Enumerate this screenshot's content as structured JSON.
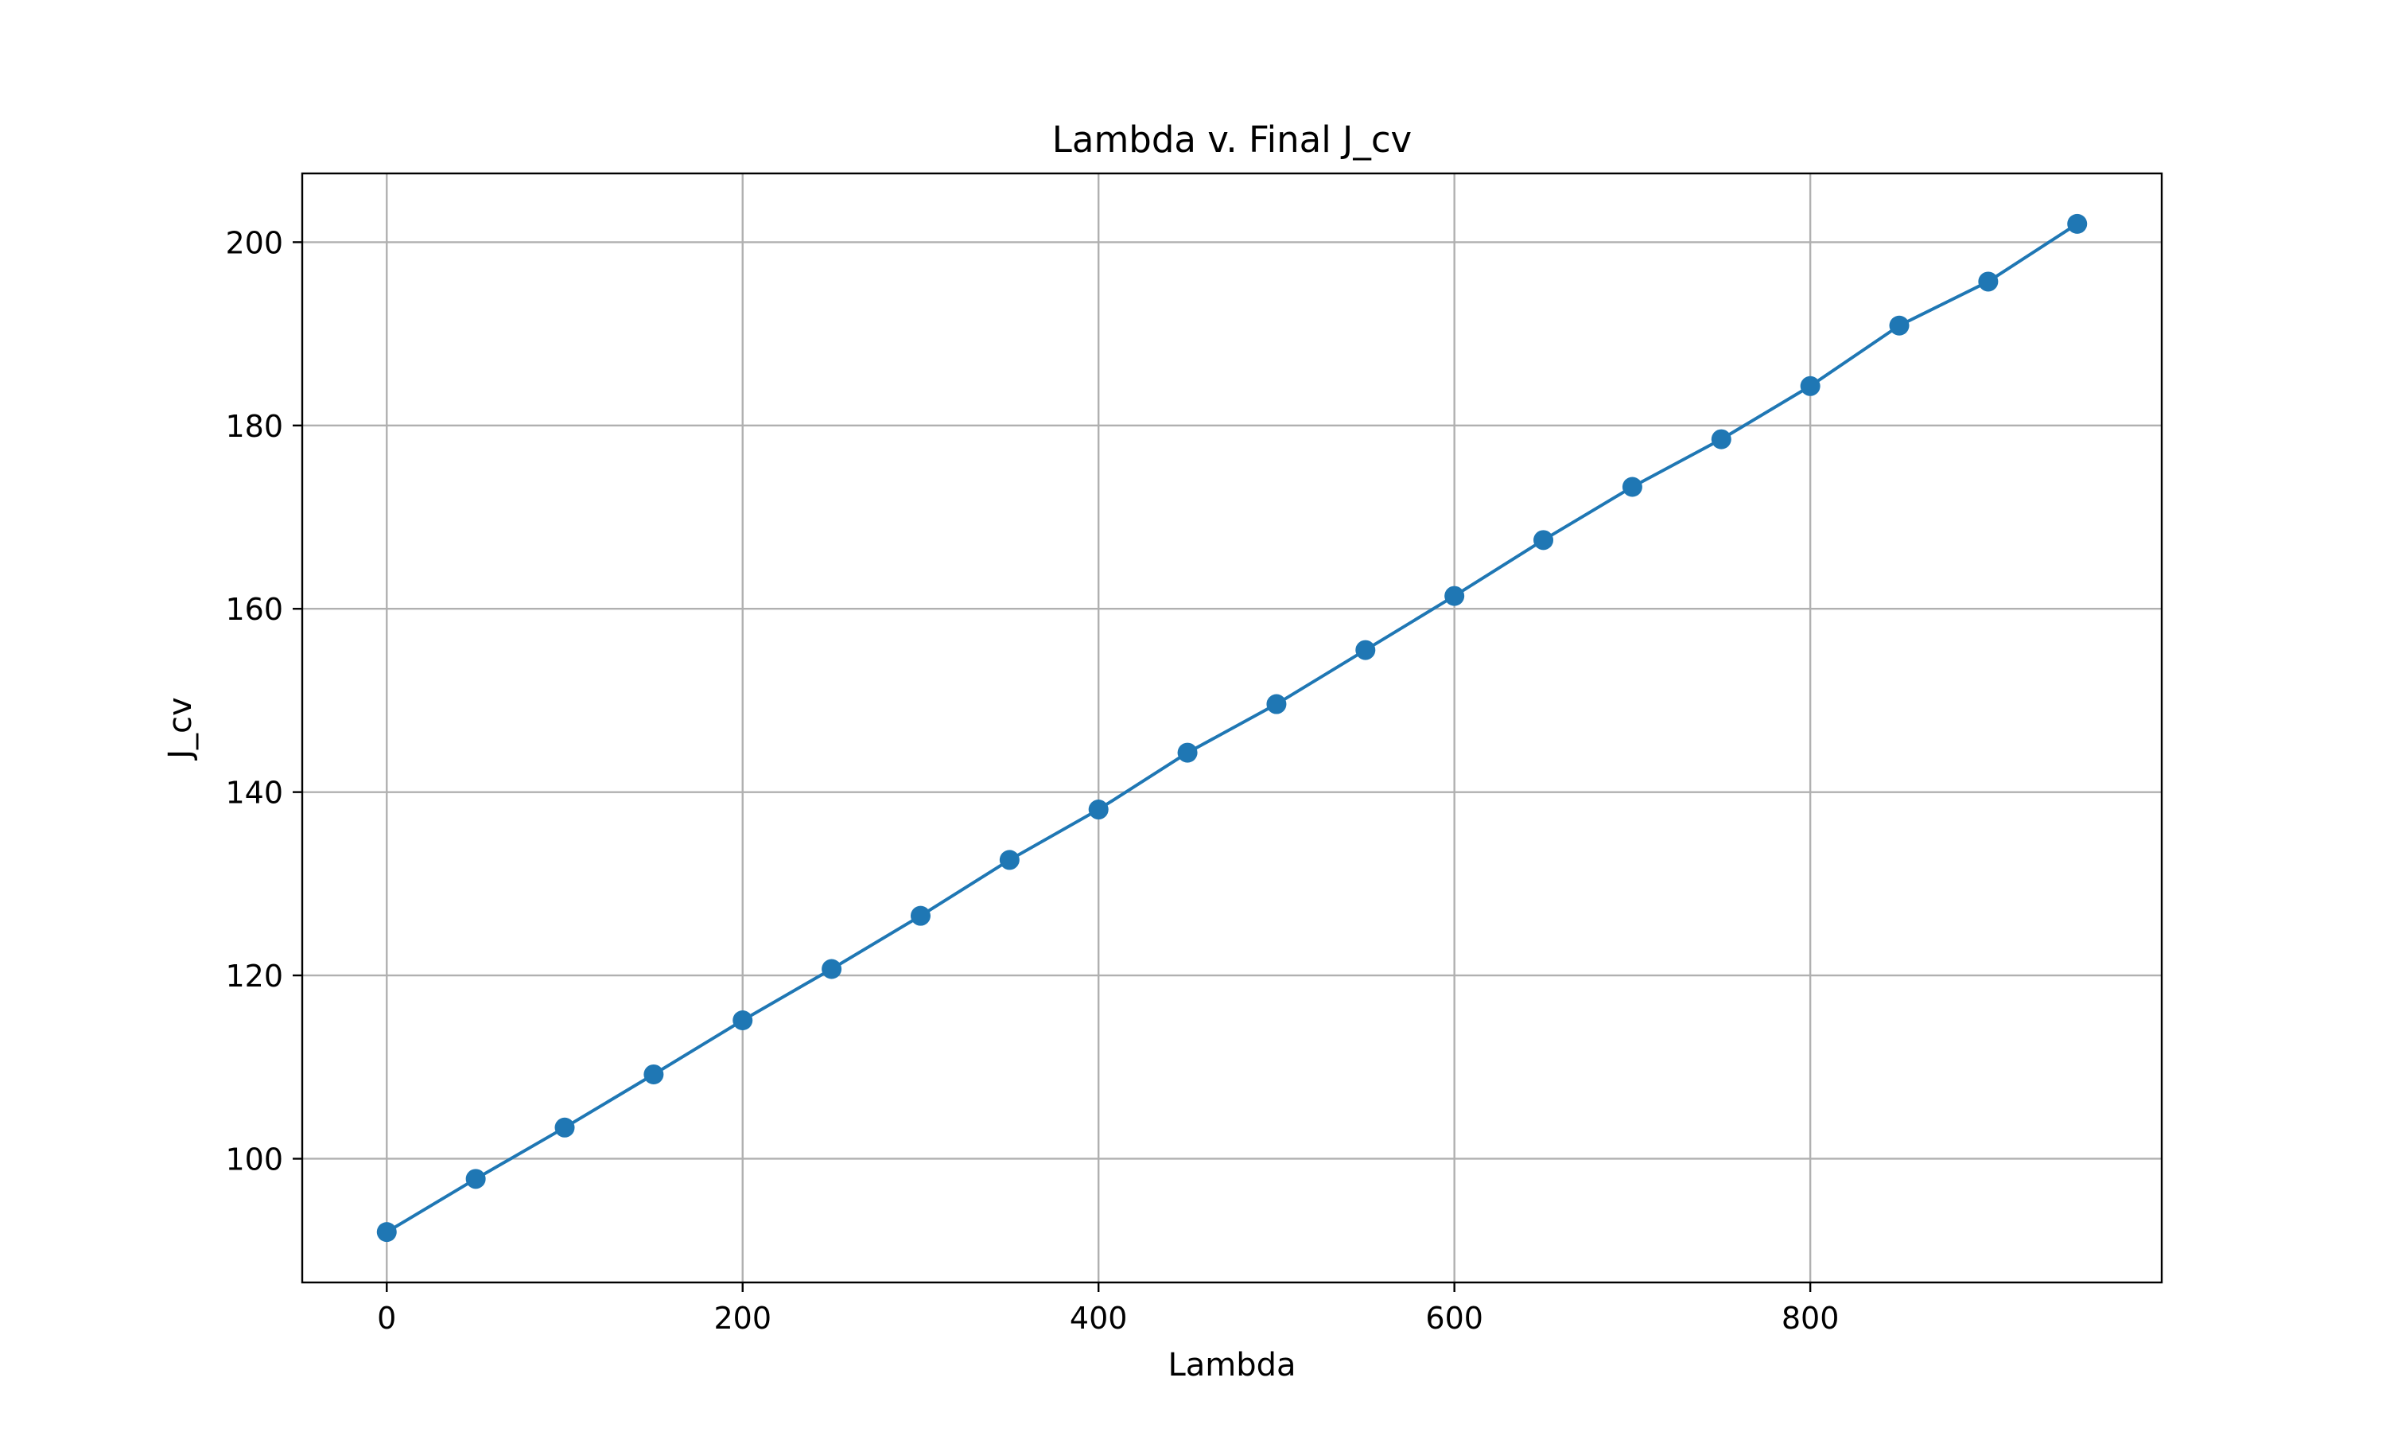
{
  "chart_data": {
    "type": "line",
    "title": "Lambda v. Final J_cv",
    "xlabel": "Lambda",
    "ylabel": "J_cv",
    "xlim": [
      -47.5,
      997.5
    ],
    "ylim": [
      86.5,
      207.5
    ],
    "xticks": [
      0,
      200,
      400,
      600,
      800
    ],
    "yticks": [
      100,
      120,
      140,
      160,
      180,
      200
    ],
    "xtick_labels": [
      "0",
      "200",
      "400",
      "600",
      "800"
    ],
    "ytick_labels": [
      "100",
      "120",
      "140",
      "160",
      "180",
      "200"
    ],
    "grid": true,
    "legend": false,
    "color": "#1f77b4",
    "marker": "circle",
    "series": [
      {
        "x": [
          0,
          50,
          100,
          150,
          200,
          250,
          300,
          350,
          400,
          450,
          500,
          550,
          600,
          650,
          700,
          750,
          800,
          850,
          900,
          950
        ],
        "y": [
          92.0,
          97.8,
          103.4,
          109.2,
          115.1,
          120.7,
          126.5,
          132.6,
          138.1,
          144.3,
          149.6,
          155.5,
          161.4,
          167.5,
          173.3,
          178.5,
          184.3,
          190.9,
          195.7,
          202.0
        ]
      }
    ]
  }
}
